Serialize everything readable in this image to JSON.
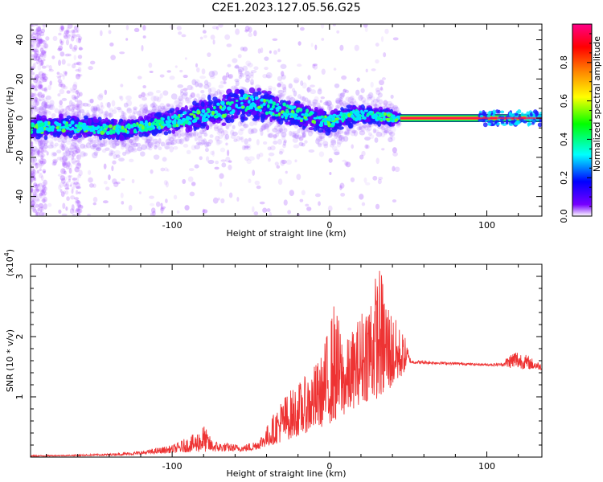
{
  "title": "C2E1.2023.127.05.56.G25",
  "chart_data": [
    {
      "type": "heatmap",
      "xlabel": "Height of straight line (km)",
      "ylabel": "Frequency (Hz)",
      "xlim": [
        -190,
        135
      ],
      "ylim": [
        -50,
        48
      ],
      "x_ticks": [
        -100,
        0,
        100
      ],
      "x_tick_labels": [
        "-100",
        "0",
        "100"
      ],
      "y_ticks": [
        -40,
        -20,
        0,
        20,
        40
      ],
      "y_tick_labels": [
        "-40",
        "-20",
        "0",
        "20",
        "40"
      ],
      "ridge_center_hz": [
        [
          -190,
          -5
        ],
        [
          -170,
          -4
        ],
        [
          -150,
          -5
        ],
        [
          -130,
          -6
        ],
        [
          -110,
          -3
        ],
        [
          -90,
          0
        ],
        [
          -70,
          4
        ],
        [
          -55,
          8
        ],
        [
          -45,
          7
        ],
        [
          -30,
          4
        ],
        [
          -10,
          0
        ],
        [
          0,
          -2
        ],
        [
          10,
          1
        ],
        [
          25,
          2
        ],
        [
          40,
          0
        ],
        [
          45,
          0
        ],
        [
          135,
          0
        ]
      ],
      "ridge_width_hz": [
        [
          -190,
          6
        ],
        [
          -120,
          5
        ],
        [
          -60,
          9
        ],
        [
          -20,
          7
        ],
        [
          40,
          4
        ],
        [
          45,
          1
        ],
        [
          135,
          1
        ]
      ],
      "colorbar": {
        "label": "Normalized spectral amplitude",
        "range": [
          0,
          1
        ],
        "ticks": [
          0,
          0.2,
          0.4,
          0.6,
          0.8
        ],
        "tick_labels": [
          "0.0",
          "0.2",
          "0.4",
          "0.6",
          "0.8"
        ],
        "colors": [
          "#ffffff",
          "#7700ff",
          "#0000ff",
          "#00ffff",
          "#00ff00",
          "#ffff00",
          "#ff8800",
          "#ff0000",
          "#ff0088"
        ]
      }
    },
    {
      "type": "line",
      "xlabel": "Height of straight line (km)",
      "ylabel": "SNR (10 * v/v)",
      "y_multiplier": "(x10",
      "y_multiplier_exp": "4",
      "y_multiplier_close": ")",
      "xlim": [
        -190,
        135
      ],
      "ylim": [
        0,
        3.2
      ],
      "x_ticks": [
        -100,
        0,
        100
      ],
      "x_tick_labels": [
        "-100",
        "0",
        "100"
      ],
      "y_ticks": [
        1,
        2,
        3
      ],
      "y_tick_labels": [
        "1",
        "2",
        "3"
      ],
      "series": [
        {
          "color": "#ee3333",
          "envelope": [
            [
              -190,
              0.03
            ],
            [
              -160,
              0.04
            ],
            [
              -140,
              0.06
            ],
            [
              -120,
              0.1
            ],
            [
              -100,
              0.2
            ],
            [
              -85,
              0.4
            ],
            [
              -80,
              0.55
            ],
            [
              -75,
              0.3
            ],
            [
              -70,
              0.25
            ],
            [
              -55,
              0.2
            ],
            [
              -45,
              0.3
            ],
            [
              -38,
              0.6
            ],
            [
              -30,
              1.0
            ],
            [
              -15,
              1.35
            ],
            [
              -5,
              1.7
            ],
            [
              3,
              2.6
            ],
            [
              10,
              1.9
            ],
            [
              18,
              2.3
            ],
            [
              25,
              2.8
            ],
            [
              32,
              3.2
            ],
            [
              40,
              2.4
            ],
            [
              48,
              2.0
            ],
            [
              52,
              1.65
            ],
            [
              60,
              1.63
            ],
            [
              80,
              1.6
            ],
            [
              100,
              1.57
            ],
            [
              110,
              1.6
            ],
            [
              118,
              1.8
            ],
            [
              125,
              1.7
            ],
            [
              135,
              1.55
            ]
          ],
          "baseline": [
            [
              -190,
              0.01
            ],
            [
              -130,
              0.03
            ],
            [
              -90,
              0.08
            ],
            [
              -50,
              0.1
            ],
            [
              -30,
              0.25
            ],
            [
              -10,
              0.45
            ],
            [
              5,
              0.6
            ],
            [
              20,
              0.9
            ],
            [
              35,
              1.0
            ],
            [
              45,
              1.3
            ],
            [
              50,
              1.52
            ],
            [
              70,
              1.52
            ],
            [
              100,
              1.5
            ],
            [
              135,
              1.45
            ]
          ]
        }
      ]
    }
  ]
}
